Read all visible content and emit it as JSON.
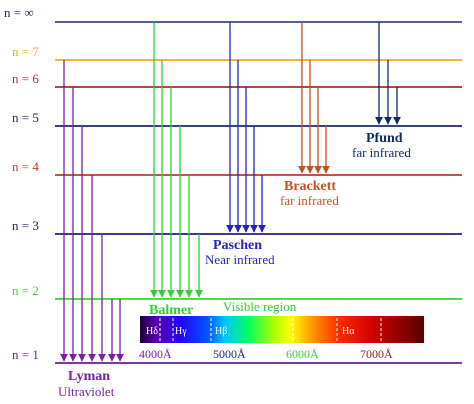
{
  "levels": [
    {
      "label": "n = ∞",
      "color": "#1a2a6c"
    },
    {
      "label": "n = 7",
      "color": "#f5a623"
    },
    {
      "label": "n = 6",
      "color": "#b02a2a"
    },
    {
      "label": "n = 5",
      "color": "#1a2a6c"
    },
    {
      "label": "n = 4",
      "color": "#c0392b"
    },
    {
      "label": "n = 3",
      "color": "#1a237e"
    },
    {
      "label": "n = 2",
      "color": "#39d42a"
    },
    {
      "label": "n = 1",
      "color": "#6a1b9a"
    }
  ],
  "series": {
    "lyman": {
      "name": "Lyman",
      "band": "Ultraviolet",
      "color": "#7b1fa2"
    },
    "balmer": {
      "name": "Balmer",
      "band": "Visible region",
      "color": "#2fcf2f"
    },
    "paschen": {
      "name": "Paschen",
      "band": "Near infrared",
      "color": "#2323c8"
    },
    "brackett": {
      "name": "Brackett",
      "band": "far infrared",
      "color": "#c8501e"
    },
    "pfund": {
      "name": "Pfund",
      "band": "far infrared",
      "color": "#0d2a6b"
    }
  },
  "spectrum": {
    "lines": [
      "Hδ",
      "Hγ",
      "Hβ",
      "Hα"
    ],
    "wavelengths": [
      "4000Å",
      "5000Å",
      "6000Å",
      "7000Å"
    ],
    "wavelength_colors": [
      "#7b1fa2",
      "#1a237e",
      "#2fcf2f",
      "#8e1b1b"
    ]
  }
}
